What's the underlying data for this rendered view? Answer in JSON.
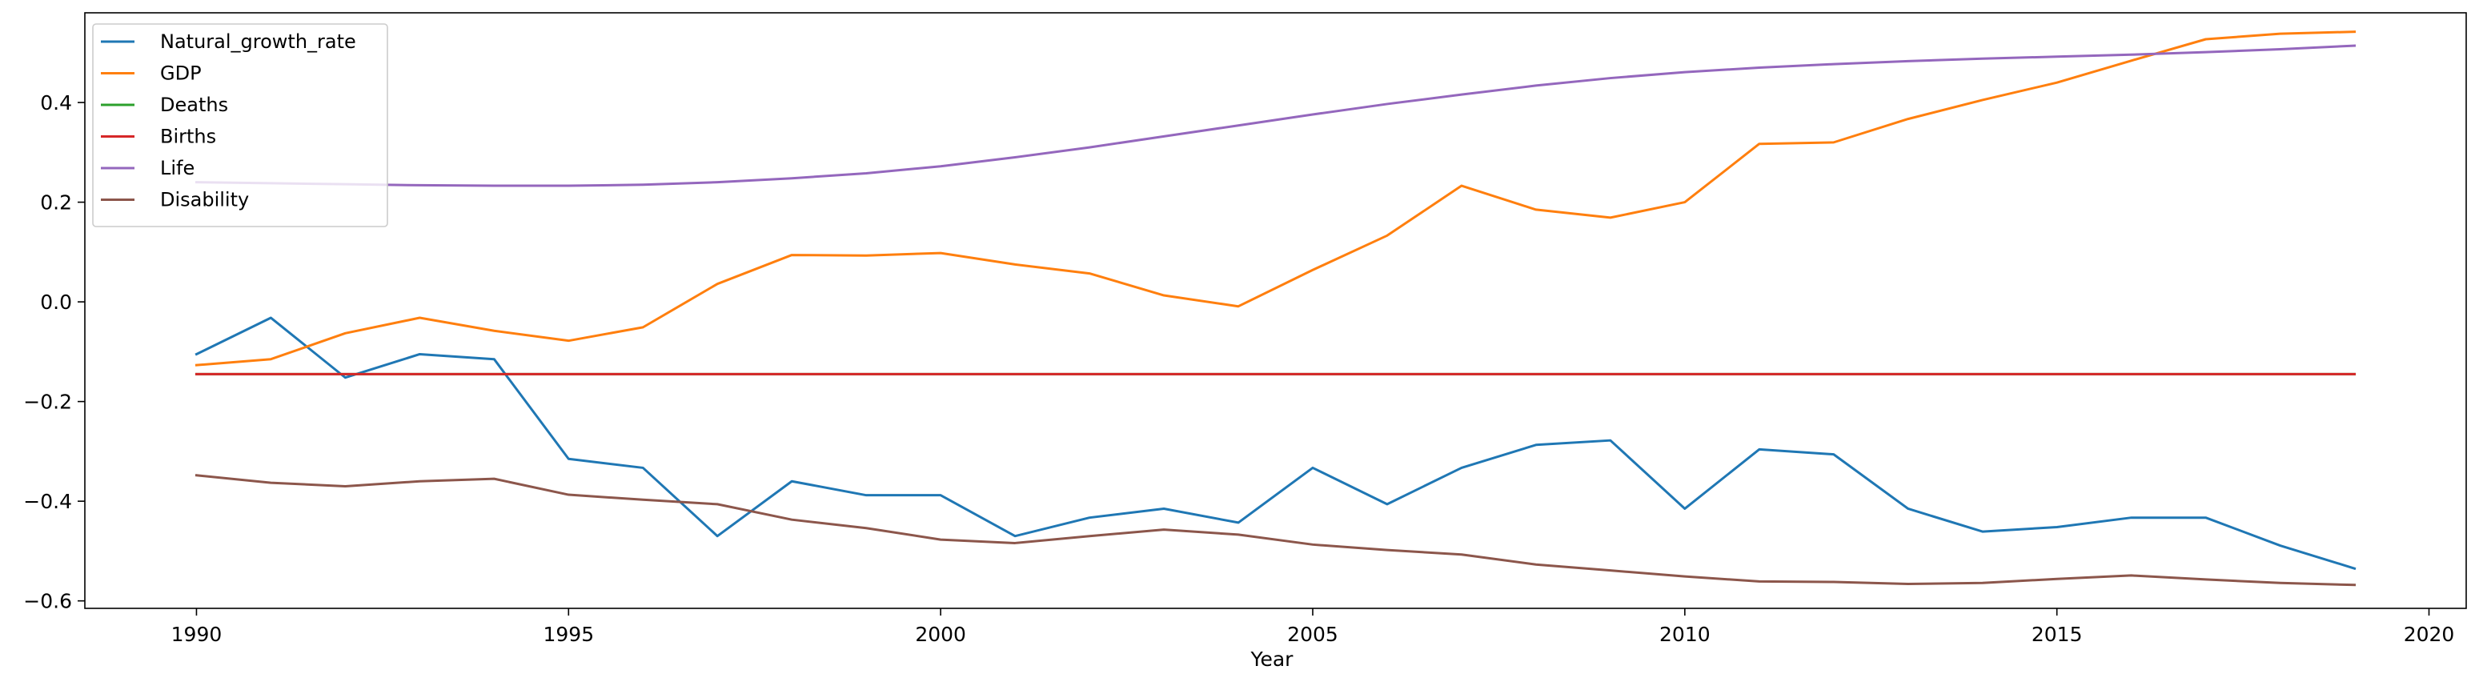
{
  "chart_data": {
    "type": "line",
    "title": "",
    "xlabel": "Year",
    "ylabel": "",
    "xlim": [
      1988.5,
      2020.5
    ],
    "ylim": [
      -0.615,
      0.58
    ],
    "x_ticks": [
      1990,
      1995,
      2000,
      2005,
      2010,
      2015,
      2020
    ],
    "x_tick_labels": [
      "1990",
      "1995",
      "2000",
      "2005",
      "2010",
      "2015",
      "2020"
    ],
    "y_ticks": [
      -0.6,
      -0.4,
      -0.2,
      0.0,
      0.2,
      0.4
    ],
    "y_tick_labels": [
      "−0.6",
      "−0.4",
      "−0.2",
      "0.0",
      "0.2",
      "0.4"
    ],
    "grid": false,
    "legend_position": "top-left",
    "x": [
      1990,
      1991,
      1992,
      1993,
      1994,
      1995,
      1996,
      1997,
      1998,
      1999,
      2000,
      2001,
      2002,
      2003,
      2004,
      2005,
      2006,
      2007,
      2008,
      2009,
      2010,
      2011,
      2012,
      2013,
      2014,
      2015,
      2016,
      2017,
      2018,
      2019
    ],
    "series": [
      {
        "name": "Natural_growth_rate",
        "color": "#1f77b4",
        "values": [
          -0.105,
          -0.032,
          -0.152,
          -0.105,
          -0.115,
          -0.315,
          -0.333,
          -0.47,
          -0.36,
          -0.388,
          -0.388,
          -0.47,
          -0.433,
          -0.415,
          -0.443,
          -0.333,
          -0.406,
          -0.333,
          -0.287,
          -0.278,
          -0.415,
          -0.296,
          -0.306,
          -0.415,
          -0.461,
          -0.452,
          -0.433,
          -0.433,
          -0.489,
          -0.535
        ]
      },
      {
        "name": "GDP",
        "color": "#ff7f0e",
        "values": [
          -0.127,
          -0.115,
          -0.063,
          -0.032,
          -0.058,
          -0.078,
          -0.051,
          0.036,
          0.094,
          0.093,
          0.098,
          0.075,
          0.057,
          0.013,
          -0.009,
          0.064,
          0.133,
          0.233,
          0.185,
          0.169,
          0.2,
          0.317,
          0.32,
          0.367,
          0.405,
          0.44,
          0.484,
          0.527,
          0.538,
          0.542
        ]
      },
      {
        "name": "Deaths",
        "color": "#2ca02c",
        "values": [
          -0.145,
          -0.145,
          -0.145,
          -0.145,
          -0.145,
          -0.145,
          -0.145,
          -0.145,
          -0.145,
          -0.145,
          -0.145,
          -0.145,
          -0.145,
          -0.145,
          -0.145,
          -0.145,
          -0.145,
          -0.145,
          -0.145,
          -0.145,
          -0.145,
          -0.145,
          -0.145,
          -0.145,
          -0.145,
          -0.145,
          -0.145,
          -0.145,
          -0.145,
          -0.145
        ]
      },
      {
        "name": "Births",
        "color": "#d62728",
        "values": [
          -0.145,
          -0.145,
          -0.145,
          -0.145,
          -0.145,
          -0.145,
          -0.145,
          -0.145,
          -0.145,
          -0.145,
          -0.145,
          -0.145,
          -0.145,
          -0.145,
          -0.145,
          -0.145,
          -0.145,
          -0.145,
          -0.145,
          -0.145,
          -0.145,
          -0.145,
          -0.145,
          -0.145,
          -0.145,
          -0.145,
          -0.145,
          -0.145,
          -0.145,
          -0.145
        ]
      },
      {
        "name": "Life",
        "color": "#9467bd",
        "values": [
          0.24,
          0.238,
          0.236,
          0.234,
          0.233,
          0.233,
          0.235,
          0.24,
          0.248,
          0.258,
          0.272,
          0.29,
          0.31,
          0.332,
          0.354,
          0.376,
          0.397,
          0.416,
          0.434,
          0.449,
          0.461,
          0.47,
          0.477,
          0.483,
          0.488,
          0.492,
          0.496,
          0.501,
          0.507,
          0.514
        ]
      },
      {
        "name": "Disability",
        "color": "#8c564b",
        "values": [
          -0.348,
          -0.363,
          -0.37,
          -0.36,
          -0.355,
          -0.387,
          -0.397,
          -0.406,
          -0.437,
          -0.454,
          -0.477,
          -0.484,
          -0.47,
          -0.457,
          -0.467,
          -0.487,
          -0.498,
          -0.507,
          -0.527,
          -0.539,
          -0.551,
          -0.561,
          -0.562,
          -0.566,
          -0.564,
          -0.556,
          -0.549,
          -0.557,
          -0.564,
          -0.568
        ]
      }
    ]
  }
}
